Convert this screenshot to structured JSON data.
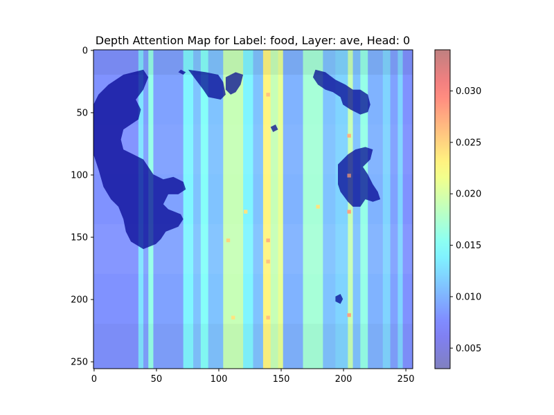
{
  "chart_data": {
    "type": "heatmap",
    "title": "Depth Attention Map for Label: food, Layer: ave, Head: 0",
    "xlabel": "",
    "ylabel": "",
    "xlim": [
      0,
      255
    ],
    "ylim": [
      255,
      0
    ],
    "x_ticks": [
      0,
      50,
      100,
      150,
      200,
      250
    ],
    "y_ticks": [
      0,
      50,
      100,
      150,
      200,
      250
    ],
    "colormap": "jet",
    "alpha": 0.5,
    "colorbar": {
      "range": [
        0.003,
        0.034
      ],
      "ticks": [
        0.005,
        0.01,
        0.015,
        0.02,
        0.025,
        0.03
      ],
      "tick_labels": [
        "0.005",
        "0.010",
        "0.015",
        "0.020",
        "0.025",
        "0.030"
      ]
    },
    "column_profile": [
      {
        "x": [
          0,
          36
        ],
        "value": 0.008
      },
      {
        "x": [
          36,
          40
        ],
        "value": 0.013
      },
      {
        "x": [
          40,
          44
        ],
        "value": 0.009
      },
      {
        "x": [
          44,
          48
        ],
        "value": 0.016
      },
      {
        "x": [
          48,
          72
        ],
        "value": 0.009
      },
      {
        "x": [
          72,
          80
        ],
        "value": 0.014
      },
      {
        "x": [
          80,
          86
        ],
        "value": 0.011
      },
      {
        "x": [
          86,
          92
        ],
        "value": 0.015
      },
      {
        "x": [
          92,
          104
        ],
        "value": 0.011
      },
      {
        "x": [
          104,
          120
        ],
        "value": 0.019
      },
      {
        "x": [
          120,
          128
        ],
        "value": 0.014
      },
      {
        "x": [
          128,
          136
        ],
        "value": 0.011
      },
      {
        "x": [
          136,
          142
        ],
        "value": 0.023
      },
      {
        "x": [
          142,
          148
        ],
        "value": 0.019
      },
      {
        "x": [
          148,
          152
        ],
        "value": 0.021
      },
      {
        "x": [
          152,
          168
        ],
        "value": 0.01
      },
      {
        "x": [
          168,
          184
        ],
        "value": 0.017
      },
      {
        "x": [
          184,
          194
        ],
        "value": 0.011
      },
      {
        "x": [
          194,
          204
        ],
        "value": 0.012
      },
      {
        "x": [
          204,
          208
        ],
        "value": 0.019
      },
      {
        "x": [
          208,
          214
        ],
        "value": 0.011
      },
      {
        "x": [
          214,
          220
        ],
        "value": 0.016
      },
      {
        "x": [
          220,
          232
        ],
        "value": 0.01
      },
      {
        "x": [
          232,
          238
        ],
        "value": 0.012
      },
      {
        "x": [
          238,
          244
        ],
        "value": 0.009
      },
      {
        "x": [
          244,
          248
        ],
        "value": 0.012
      },
      {
        "x": [
          248,
          256
        ],
        "value": 0.008
      }
    ],
    "row_modulation": [
      {
        "y": [
          0,
          20
        ],
        "factor": 0.9
      },
      {
        "y": [
          20,
          60
        ],
        "factor": 1.0
      },
      {
        "y": [
          60,
          100
        ],
        "factor": 1.05
      },
      {
        "y": [
          100,
          140
        ],
        "factor": 1.0
      },
      {
        "y": [
          140,
          180
        ],
        "factor": 1.08
      },
      {
        "y": [
          180,
          220
        ],
        "factor": 1.0
      },
      {
        "y": [
          220,
          256
        ],
        "factor": 0.95
      }
    ],
    "hotspots": [
      {
        "x": 205,
        "y": 101,
        "value": 0.034
      },
      {
        "x": 205,
        "y": 130,
        "value": 0.028
      },
      {
        "x": 205,
        "y": 69,
        "value": 0.027
      },
      {
        "x": 205,
        "y": 213,
        "value": 0.028
      },
      {
        "x": 140,
        "y": 36,
        "value": 0.026
      },
      {
        "x": 140,
        "y": 153,
        "value": 0.027
      },
      {
        "x": 140,
        "y": 170,
        "value": 0.026
      },
      {
        "x": 140,
        "y": 215,
        "value": 0.026
      },
      {
        "x": 108,
        "y": 153,
        "value": 0.025
      },
      {
        "x": 112,
        "y": 215,
        "value": 0.024
      },
      {
        "x": 122,
        "y": 130,
        "value": 0.024
      },
      {
        "x": 180,
        "y": 126,
        "value": 0.024
      }
    ],
    "dark_regions": [
      {
        "value": 0.0,
        "points": [
          [
            0,
            44
          ],
          [
            4,
            36
          ],
          [
            12,
            28
          ],
          [
            24,
            20
          ],
          [
            40,
            16
          ],
          [
            44,
            22
          ],
          [
            40,
            32
          ],
          [
            34,
            40
          ],
          [
            38,
            48
          ],
          [
            36,
            56
          ],
          [
            30,
            60
          ],
          [
            24,
            64
          ],
          [
            22,
            72
          ],
          [
            24,
            80
          ],
          [
            32,
            84
          ],
          [
            40,
            88
          ],
          [
            44,
            94
          ],
          [
            48,
            100
          ],
          [
            56,
            104
          ],
          [
            64,
            102
          ],
          [
            72,
            106
          ],
          [
            74,
            112
          ],
          [
            68,
            116
          ],
          [
            60,
            116
          ],
          [
            56,
            124
          ],
          [
            60,
            128
          ],
          [
            70,
            132
          ],
          [
            72,
            136
          ],
          [
            68,
            142
          ],
          [
            58,
            146
          ],
          [
            54,
            152
          ],
          [
            50,
            156
          ],
          [
            40,
            160
          ],
          [
            30,
            154
          ],
          [
            26,
            146
          ],
          [
            24,
            136
          ],
          [
            20,
            126
          ],
          [
            14,
            120
          ],
          [
            8,
            110
          ],
          [
            4,
            96
          ],
          [
            0,
            84
          ]
        ]
      },
      {
        "value": 0.0,
        "points": [
          [
            76,
            16
          ],
          [
            90,
            18
          ],
          [
            100,
            20
          ],
          [
            104,
            26
          ],
          [
            106,
            36
          ],
          [
            102,
            40
          ],
          [
            92,
            38
          ],
          [
            88,
            32
          ],
          [
            82,
            24
          ]
        ]
      },
      {
        "value": 0.0,
        "points": [
          [
            70,
            16
          ],
          [
            74,
            18
          ],
          [
            72,
            20
          ],
          [
            68,
            18
          ]
        ]
      },
      {
        "value": 0.0,
        "points": [
          [
            106,
            22
          ],
          [
            114,
            18
          ],
          [
            120,
            20
          ],
          [
            118,
            28
          ],
          [
            114,
            34
          ],
          [
            110,
            36
          ],
          [
            106,
            32
          ]
        ]
      },
      {
        "value": 0.0,
        "points": [
          [
            178,
            16
          ],
          [
            186,
            18
          ],
          [
            194,
            24
          ],
          [
            202,
            28
          ],
          [
            208,
            32
          ],
          [
            214,
            32
          ],
          [
            220,
            36
          ],
          [
            222,
            44
          ],
          [
            220,
            50
          ],
          [
            214,
            52
          ],
          [
            206,
            48
          ],
          [
            200,
            44
          ],
          [
            198,
            38
          ],
          [
            192,
            34
          ],
          [
            186,
            32
          ],
          [
            180,
            28
          ],
          [
            176,
            22
          ]
        ]
      },
      {
        "value": 0.0,
        "points": [
          [
            196,
            92
          ],
          [
            204,
            84
          ],
          [
            210,
            80
          ],
          [
            218,
            78
          ],
          [
            224,
            80
          ],
          [
            222,
            88
          ],
          [
            216,
            94
          ],
          [
            220,
            100
          ],
          [
            224,
            108
          ],
          [
            228,
            114
          ],
          [
            230,
            120
          ],
          [
            224,
            122
          ],
          [
            218,
            120
          ],
          [
            214,
            126
          ],
          [
            208,
            126
          ],
          [
            204,
            122
          ],
          [
            198,
            114
          ],
          [
            196,
            108
          ],
          [
            196,
            100
          ]
        ]
      },
      {
        "value": 0.0,
        "points": [
          [
            194,
            198
          ],
          [
            198,
            196
          ],
          [
            200,
            200
          ],
          [
            198,
            204
          ],
          [
            194,
            202
          ]
        ]
      },
      {
        "value": 0.0,
        "points": [
          [
            142,
            62
          ],
          [
            146,
            60
          ],
          [
            148,
            64
          ],
          [
            144,
            66
          ]
        ]
      }
    ]
  }
}
